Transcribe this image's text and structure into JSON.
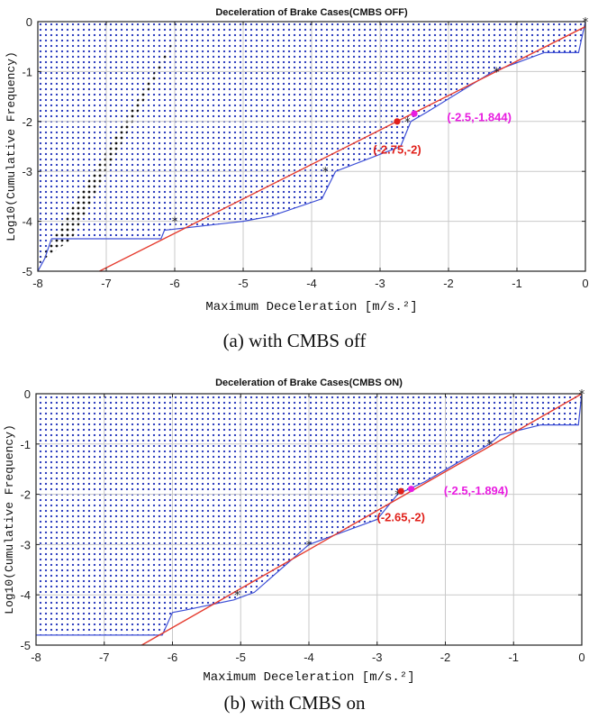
{
  "panels": [
    {
      "caption": "(a) with CMBS off",
      "chart_data": {
        "type": "line",
        "title": "Deceleration of Brake Cases(CMBS OFF)",
        "xlabel": "Maximum Deceleration [m/s.²]",
        "ylabel": "Log10(Cumulative Frequency)",
        "xlim": [
          -8,
          0
        ],
        "ylim": [
          -5,
          0
        ],
        "xticks": [
          -8,
          -7,
          -6,
          -5,
          -4,
          -3,
          -2,
          -1,
          0
        ],
        "yticks": [
          0,
          -1,
          -2,
          -3,
          -4,
          -5
        ],
        "grid": true,
        "series": [
          {
            "kind": "cumulative-frequency-curve",
            "color": "#3d4fd6",
            "x": [
              -8,
              -7.9,
              -7.8,
              -7.5,
              -7.4,
              -6.2,
              -6.15,
              -5.0,
              -4.6,
              -3.85,
              -3.65,
              -2.7,
              -2.55,
              -2.3,
              -1.35,
              -1.25,
              -0.6,
              -0.1,
              0
            ],
            "y": [
              -5,
              -4.75,
              -4.35,
              -4.35,
              -4.35,
              -4.35,
              -4.18,
              -4.0,
              -3.9,
              -3.55,
              -3.0,
              -2.5,
              -2.0,
              -1.8,
              -1.0,
              -0.95,
              -0.62,
              -0.62,
              0
            ]
          },
          {
            "kind": "fitted-line",
            "color": "#e53b2e",
            "x": [
              -7.1,
              0
            ],
            "y": [
              -5,
              -0.1
            ]
          }
        ],
        "sample_points": [
          [
            -6,
            -4
          ],
          [
            -3.8,
            -3
          ],
          [
            -2.6,
            -2
          ],
          [
            -1.3,
            -1
          ],
          [
            0,
            0
          ]
        ],
        "annotations": [
          {
            "x": -2.75,
            "y": -2,
            "label": "(-2.75,-2)",
            "color": "#e0201a",
            "label_x": -2.75,
            "label_y": -2.55
          },
          {
            "x": -2.5,
            "y": -1.844,
            "label": "(-2.5,-1.844)",
            "color": "#e81ce0",
            "label_x": -1.55,
            "label_y": -1.9
          }
        ],
        "upper_region_color": "#2233bb",
        "black_region_color": "#111111"
      }
    },
    {
      "caption": "(b) with CMBS on",
      "chart_data": {
        "type": "line",
        "title": "Deceleration of Brake Cases(CMBS ON)",
        "xlabel": "Maximum Deceleration [m/s.²]",
        "ylabel": "Log10(Cumulative Frequency)",
        "xlim": [
          -8,
          0
        ],
        "ylim": [
          -5,
          0
        ],
        "xticks": [
          -8,
          -7,
          -6,
          -5,
          -4,
          -3,
          -2,
          -1,
          0
        ],
        "yticks": [
          0,
          -1,
          -2,
          -3,
          -4,
          -5
        ],
        "grid": true,
        "series": [
          {
            "kind": "cumulative-frequency-curve",
            "color": "#3d4fd6",
            "x": [
              -8,
              -6.15,
              -6.0,
              -5.8,
              -5.1,
              -4.8,
              -4.0,
              -3.0,
              -2.7,
              -2.3,
              -1.35,
              -1.2,
              -0.6,
              -0.05,
              0
            ],
            "y": [
              -4.8,
              -4.8,
              -4.35,
              -4.3,
              -4.1,
              -3.95,
              -3.0,
              -2.5,
              -2.0,
              -1.75,
              -1.0,
              -0.82,
              -0.62,
              -0.62,
              0
            ]
          },
          {
            "kind": "fitted-line",
            "color": "#e53b2e",
            "x": [
              -6.45,
              0
            ],
            "y": [
              -5,
              0
            ]
          }
        ],
        "sample_points": [
          [
            -5.05,
            -4
          ],
          [
            -4.0,
            -3
          ],
          [
            -2.7,
            -2
          ],
          [
            -1.35,
            -1
          ],
          [
            0,
            0
          ]
        ],
        "annotations": [
          {
            "x": -2.65,
            "y": -1.94,
            "label": "(-2.65,-2)",
            "color": "#e0201a",
            "label_x": -2.65,
            "label_y": -2.45
          },
          {
            "x": -2.5,
            "y": -1.894,
            "label": "(-2.5,-1.894)",
            "color": "#e81ce0",
            "label_x": -1.55,
            "label_y": -1.92
          }
        ],
        "upper_region_color": "#2233bb"
      }
    }
  ]
}
